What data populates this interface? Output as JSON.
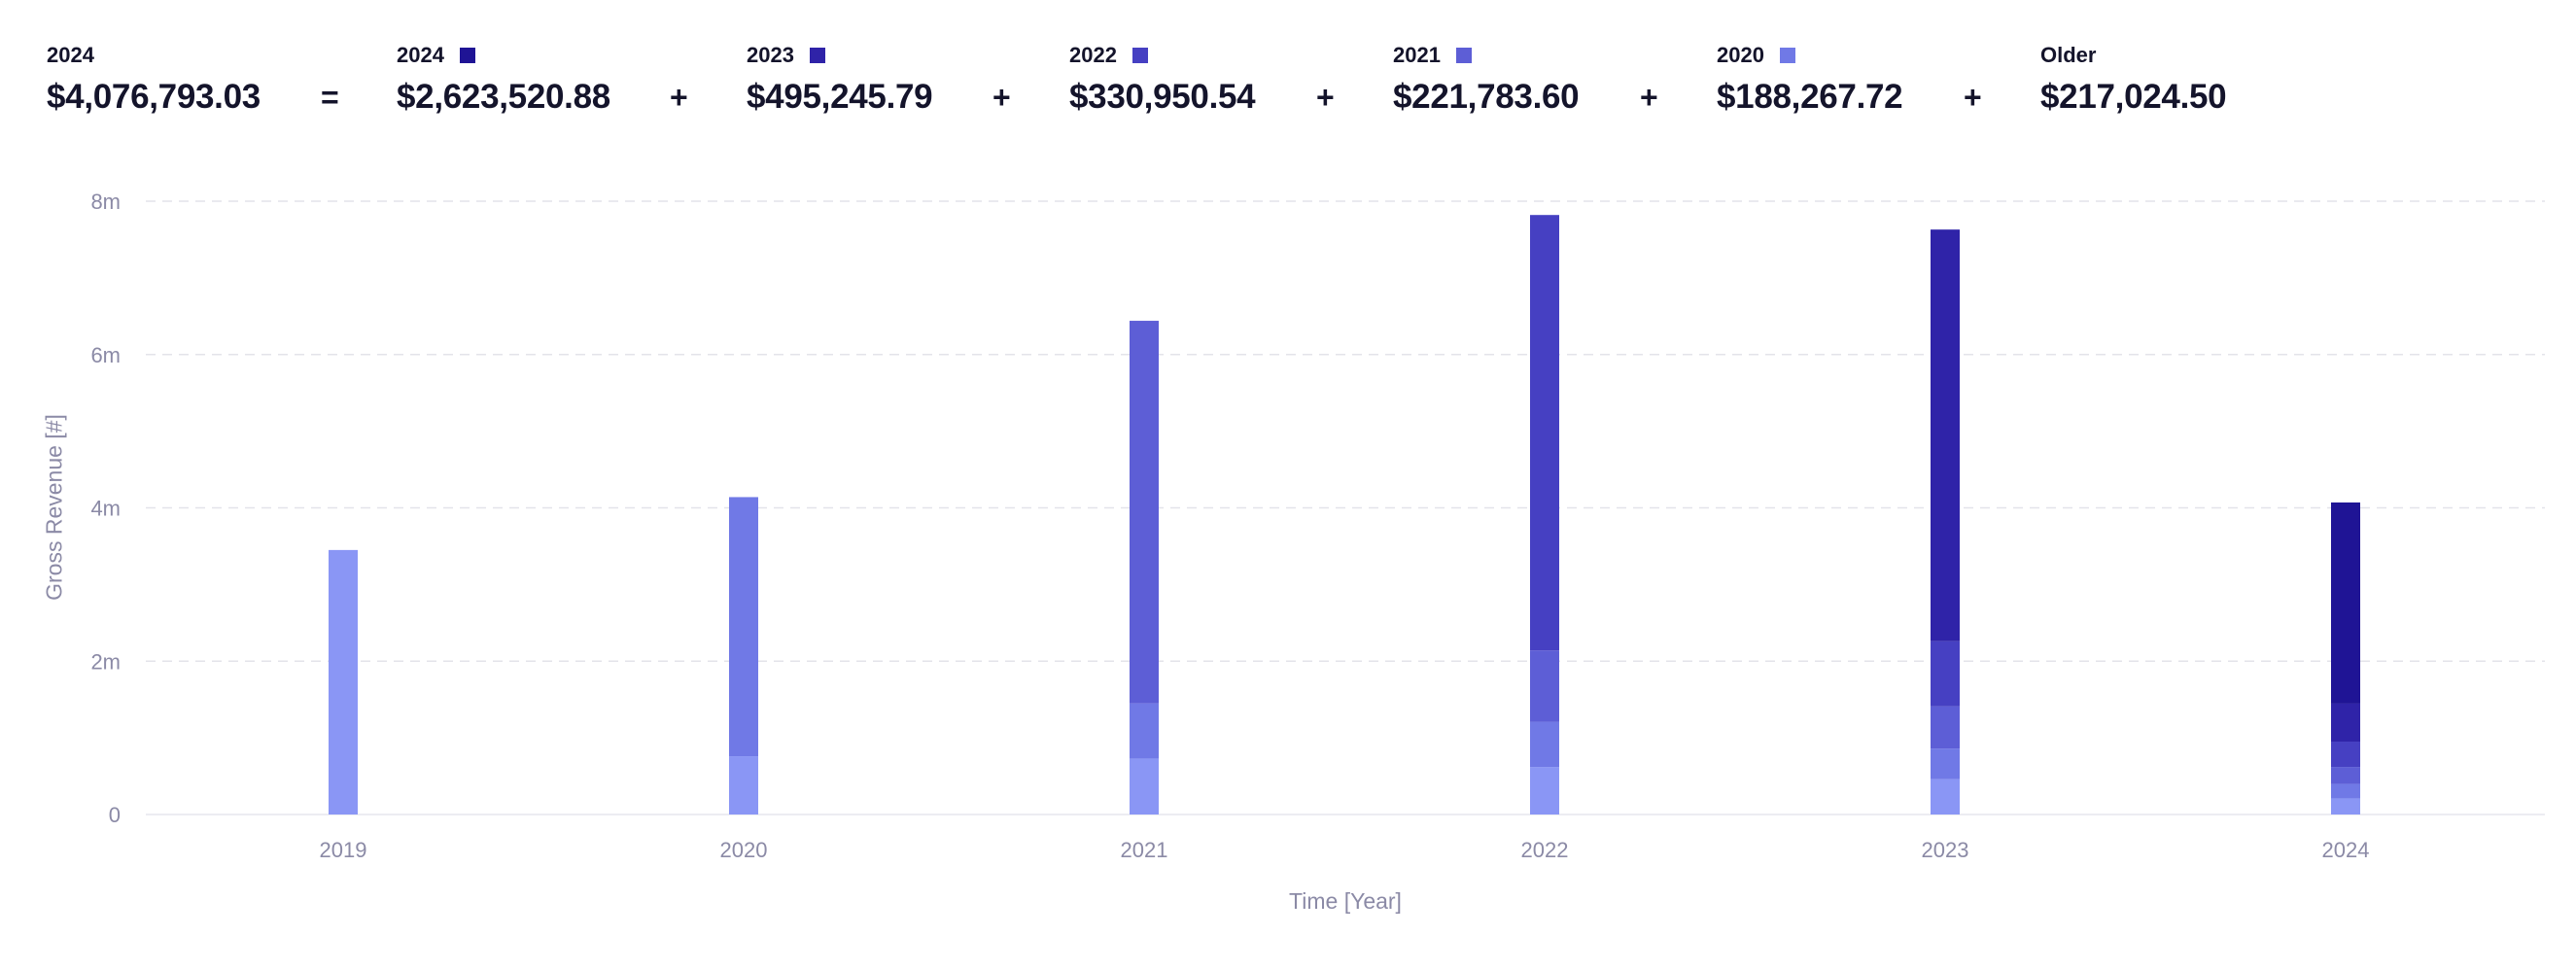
{
  "summary": {
    "total": {
      "label": "2024",
      "value": "$4,076,793.03"
    },
    "equals": "=",
    "plus": "+",
    "cohorts": [
      {
        "label": "2024",
        "value": "$2,623,520.88",
        "color": "#1f1495"
      },
      {
        "label": "2023",
        "value": "$495,245.79",
        "color": "#2f23a8"
      },
      {
        "label": "2022",
        "value": "$330,950.54",
        "color": "#4640c2"
      },
      {
        "label": "2021",
        "value": "$221,783.60",
        "color": "#5d5ed6"
      },
      {
        "label": "2020",
        "value": "$188,267.72",
        "color": "#7079e6"
      },
      {
        "label": "Older",
        "value": "$217,024.50",
        "color": null
      }
    ]
  },
  "chart_data": {
    "type": "bar",
    "stacked": true,
    "xlabel": "Time [Year]",
    "ylabel": "Gross Revenue [#]",
    "ylim": [
      0,
      8000000
    ],
    "yticks": [
      {
        "value": 0,
        "label": "0"
      },
      {
        "value": 2000000,
        "label": "2m"
      },
      {
        "value": 4000000,
        "label": "4m"
      },
      {
        "value": 6000000,
        "label": "6m"
      },
      {
        "value": 8000000,
        "label": "8m"
      }
    ],
    "grid": "horizontal-dashed",
    "categories": [
      "2019",
      "2020",
      "2021",
      "2022",
      "2023",
      "2024"
    ],
    "series": [
      {
        "name": "2019",
        "color": "#8a96f5",
        "values": [
          3450000,
          760000,
          730000,
          620000,
          460000,
          210000
        ]
      },
      {
        "name": "2020",
        "color": "#7079e6",
        "values": [
          0,
          3380000,
          720000,
          590000,
          400000,
          188267.72
        ]
      },
      {
        "name": "2021",
        "color": "#5d5ed6",
        "values": [
          0,
          0,
          4990000,
          930000,
          550000,
          221783.6
        ]
      },
      {
        "name": "2022",
        "color": "#4640c2",
        "values": [
          0,
          0,
          0,
          5680000,
          850000,
          330950.54
        ]
      },
      {
        "name": "2023",
        "color": "#2f23a8",
        "values": [
          0,
          0,
          0,
          0,
          5370000,
          495245.79
        ]
      },
      {
        "name": "2024",
        "color": "#1f1495",
        "values": [
          0,
          0,
          0,
          0,
          0,
          2623520.88
        ]
      }
    ]
  }
}
